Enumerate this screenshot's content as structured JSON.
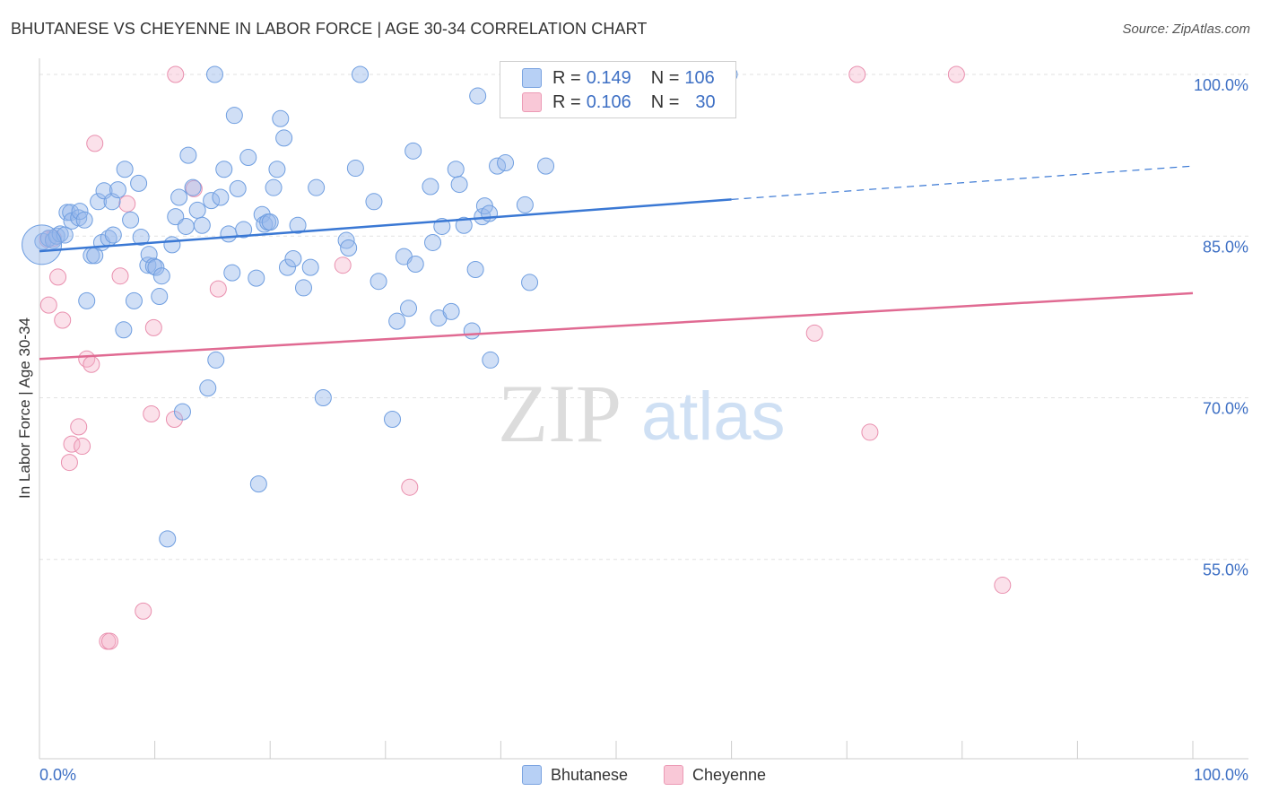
{
  "title": "BHUTANESE VS CHEYENNE IN LABOR FORCE | AGE 30-34 CORRELATION CHART",
  "source": "Source: ZipAtlas.com",
  "watermark": {
    "zip": "ZIP",
    "atlas": "atlas"
  },
  "legend": {
    "r_label": "R =",
    "n_label": "N =",
    "bhutanese": {
      "r": "0.149",
      "n": "106"
    },
    "cheyenne": {
      "r": "0.106",
      "n": "30"
    }
  },
  "chart_data": {
    "type": "scatter",
    "title": "BHUTANESE VS CHEYENNE IN LABOR FORCE | AGE 30-34 CORRELATION CHART",
    "xlabel": "",
    "ylabel": "In Labor Force | Age 30-34",
    "xlim": [
      0,
      100
    ],
    "ylim": [
      36.5,
      101.5
    ],
    "x_tick_labels": [
      {
        "value": 0,
        "label": "0.0%"
      },
      {
        "value": 100,
        "label": "100.0%"
      }
    ],
    "y_tick_labels": [
      {
        "value": 100,
        "label": "100.0%"
      },
      {
        "value": 85,
        "label": "85.0%"
      },
      {
        "value": 70,
        "label": "70.0%"
      },
      {
        "value": 55,
        "label": "55.0%"
      }
    ],
    "y_gridlines": [
      100,
      85,
      70,
      55
    ],
    "legend_position": "top-center",
    "colors": {
      "bhutanese": "#a9c6f2",
      "bhutanese_line": "#3a78d4",
      "cheyenne": "#f5b8cb",
      "cheyenne_line": "#e06a92"
    },
    "series": [
      {
        "name": "Bhutanese",
        "trend": {
          "x0": 0,
          "y0": 83.6,
          "x1": 60,
          "y1": 88.4,
          "dashed_to_x": 100,
          "dashed_to_y": 91.5
        },
        "points": [
          [
            0.3,
            84.5
          ],
          [
            0.8,
            84.8
          ],
          [
            1.2,
            84.6
          ],
          [
            1.5,
            85.0
          ],
          [
            1.8,
            85.2
          ],
          [
            2.2,
            85.1
          ],
          [
            2.4,
            87.2
          ],
          [
            2.7,
            87.2
          ],
          [
            2.8,
            86.4
          ],
          [
            3.4,
            86.7
          ],
          [
            3.5,
            87.3
          ],
          [
            3.9,
            86.5
          ],
          [
            4.1,
            79.0
          ],
          [
            4.5,
            83.2
          ],
          [
            4.8,
            83.2
          ],
          [
            5.1,
            88.2
          ],
          [
            5.4,
            84.4
          ],
          [
            5.6,
            89.2
          ],
          [
            6.0,
            84.8
          ],
          [
            6.3,
            88.2
          ],
          [
            6.4,
            85.1
          ],
          [
            6.8,
            89.3
          ],
          [
            7.3,
            76.3
          ],
          [
            7.4,
            91.2
          ],
          [
            7.9,
            86.5
          ],
          [
            8.2,
            79.0
          ],
          [
            8.6,
            89.9
          ],
          [
            8.8,
            84.9
          ],
          [
            9.4,
            82.3
          ],
          [
            9.5,
            83.3
          ],
          [
            9.9,
            82.2
          ],
          [
            10.1,
            82.1
          ],
          [
            10.4,
            79.4
          ],
          [
            10.6,
            81.3
          ],
          [
            11.1,
            56.9
          ],
          [
            11.5,
            84.2
          ],
          [
            11.8,
            86.8
          ],
          [
            12.1,
            88.6
          ],
          [
            12.4,
            68.7
          ],
          [
            12.7,
            85.9
          ],
          [
            12.9,
            92.5
          ],
          [
            13.3,
            89.5
          ],
          [
            13.7,
            87.4
          ],
          [
            14.1,
            86.0
          ],
          [
            14.6,
            70.9
          ],
          [
            14.9,
            88.3
          ],
          [
            15.3,
            73.5
          ],
          [
            15.7,
            88.6
          ],
          [
            16.0,
            91.2
          ],
          [
            16.4,
            85.2
          ],
          [
            16.7,
            81.6
          ],
          [
            16.9,
            96.2
          ],
          [
            17.2,
            89.4
          ],
          [
            17.7,
            85.6
          ],
          [
            18.1,
            92.3
          ],
          [
            18.8,
            81.1
          ],
          [
            19.3,
            87.0
          ],
          [
            19.5,
            86.1
          ],
          [
            19.8,
            86.3
          ],
          [
            19.0,
            62.0
          ],
          [
            20.0,
            86.3
          ],
          [
            20.3,
            89.5
          ],
          [
            20.6,
            91.2
          ],
          [
            20.9,
            95.9
          ],
          [
            21.2,
            94.1
          ],
          [
            21.5,
            82.1
          ],
          [
            22.0,
            82.9
          ],
          [
            22.4,
            86.0
          ],
          [
            22.9,
            80.2
          ],
          [
            23.5,
            82.1
          ],
          [
            24.0,
            89.5
          ],
          [
            24.6,
            70.0
          ],
          [
            26.6,
            84.6
          ],
          [
            26.8,
            83.9
          ],
          [
            27.4,
            91.3
          ],
          [
            29.0,
            88.2
          ],
          [
            29.4,
            80.8
          ],
          [
            30.6,
            68.0
          ],
          [
            31.0,
            77.1
          ],
          [
            31.6,
            83.1
          ],
          [
            32.0,
            78.3
          ],
          [
            32.4,
            92.9
          ],
          [
            32.6,
            82.4
          ],
          [
            33.9,
            89.6
          ],
          [
            34.1,
            84.4
          ],
          [
            34.6,
            77.4
          ],
          [
            34.9,
            85.9
          ],
          [
            35.7,
            78.0
          ],
          [
            36.1,
            91.2
          ],
          [
            36.4,
            89.8
          ],
          [
            36.8,
            86.0
          ],
          [
            37.5,
            76.2
          ],
          [
            37.8,
            81.9
          ],
          [
            38.0,
            98.0
          ],
          [
            38.4,
            86.8
          ],
          [
            38.6,
            87.8
          ],
          [
            39.0,
            87.1
          ],
          [
            39.1,
            73.5
          ],
          [
            39.7,
            91.5
          ],
          [
            40.4,
            91.8
          ],
          [
            42.1,
            87.9
          ],
          [
            42.5,
            80.7
          ],
          [
            43.9,
            91.5
          ],
          [
            15.2,
            100.0
          ],
          [
            27.8,
            100.0
          ],
          [
            59.8,
            100.0
          ]
        ]
      },
      {
        "name": "Cheyenne",
        "trend": {
          "x0": 0,
          "y0": 73.6,
          "x1": 100,
          "y1": 79.7
        },
        "points": [
          [
            0.7,
            84.7
          ],
          [
            0.8,
            78.6
          ],
          [
            1.6,
            81.2
          ],
          [
            2.0,
            77.2
          ],
          [
            3.4,
            67.3
          ],
          [
            2.6,
            64.0
          ],
          [
            2.8,
            65.7
          ],
          [
            3.7,
            65.5
          ],
          [
            4.1,
            73.6
          ],
          [
            4.5,
            73.1
          ],
          [
            4.8,
            93.6
          ],
          [
            5.9,
            47.4
          ],
          [
            6.1,
            47.4
          ],
          [
            7.0,
            81.3
          ],
          [
            7.6,
            88.0
          ],
          [
            9.0,
            50.2
          ],
          [
            9.7,
            68.5
          ],
          [
            9.9,
            76.5
          ],
          [
            11.7,
            68.0
          ],
          [
            13.4,
            89.4
          ],
          [
            15.5,
            80.1
          ],
          [
            11.8,
            100.0
          ],
          [
            26.3,
            82.3
          ],
          [
            32.1,
            61.7
          ],
          [
            67.2,
            76.0
          ],
          [
            70.9,
            100.0
          ],
          [
            72.0,
            66.8
          ],
          [
            79.5,
            100.0
          ],
          [
            83.5,
            52.6
          ],
          [
            1.2,
            84.8
          ]
        ]
      }
    ]
  }
}
